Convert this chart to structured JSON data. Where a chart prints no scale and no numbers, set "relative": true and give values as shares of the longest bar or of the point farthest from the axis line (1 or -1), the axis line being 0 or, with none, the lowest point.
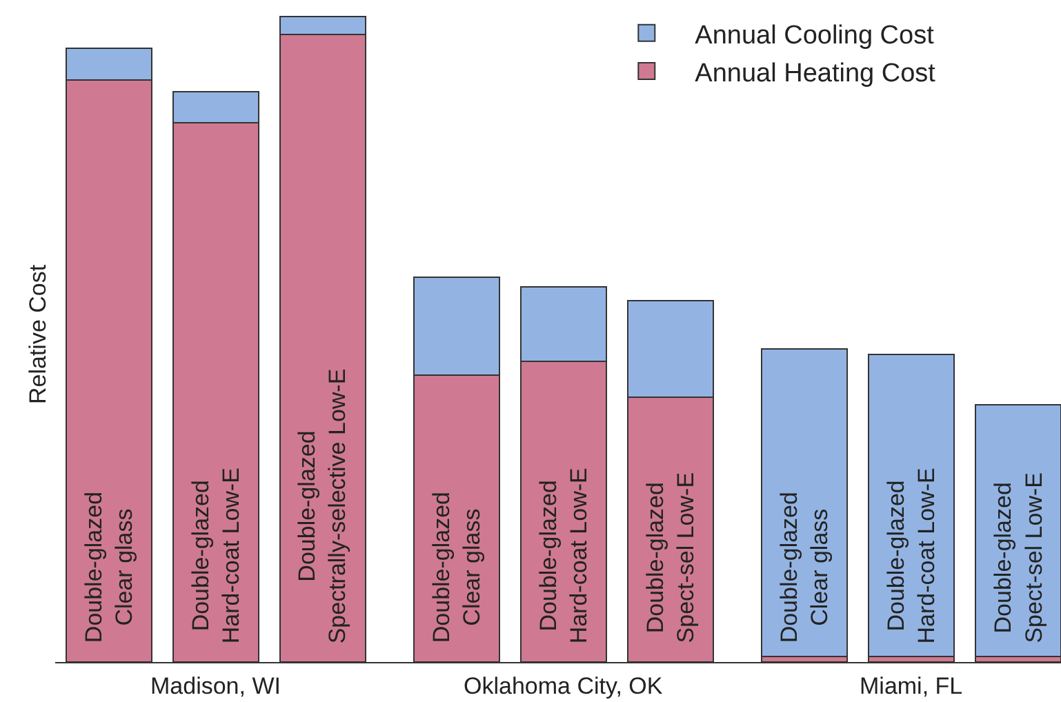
{
  "chart_data": {
    "type": "bar",
    "stacked": true,
    "relative": true,
    "ylabel": "Relative Cost",
    "categories": [
      "Double-glazed\nClear glass",
      "Double-glazed\nHard-coat Low-E",
      "Double-glazed\nSpectrally-selective Low-E",
      "Double-glazed\nClear glass",
      "Double-glazed\nHard-coat Low-E",
      "Double-glazed\nSpect-sel Low-E",
      "Double-glazed\nClear glass",
      "Double-glazed\nHard-coat Low-E",
      "Double-glazed\nSpect-sel Low-E"
    ],
    "series": [
      {
        "name": "Annual Heating Cost",
        "color": "#cf7a92",
        "values": [
          0.902,
          0.835,
          0.972,
          0.444,
          0.466,
          0.41,
          0.009,
          0.009,
          0.009
        ]
      },
      {
        "name": "Annual Cooling Cost",
        "color": "#93b4e3",
        "values": [
          0.049,
          0.049,
          0.028,
          0.152,
          0.115,
          0.15,
          0.476,
          0.468,
          0.389
        ]
      }
    ],
    "annotations": [
      "Madison, WI",
      "Oklahoma City, OK",
      "Miami, FL"
    ],
    "legend": "top right"
  }
}
